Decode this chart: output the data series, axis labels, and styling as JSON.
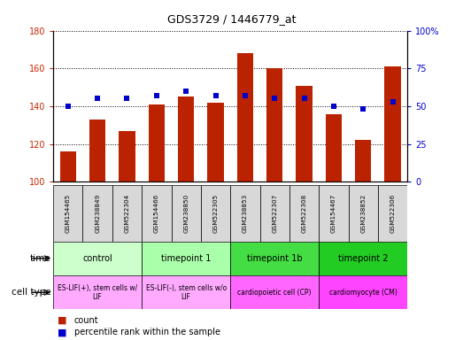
{
  "title": "GDS3729 / 1446779_at",
  "samples": [
    "GSM154465",
    "GSM238849",
    "GSM522304",
    "GSM154466",
    "GSM238850",
    "GSM522305",
    "GSM238853",
    "GSM522307",
    "GSM522308",
    "GSM154467",
    "GSM238852",
    "GSM522306"
  ],
  "counts": [
    116,
    133,
    127,
    141,
    145,
    142,
    168,
    160,
    151,
    136,
    122,
    161
  ],
  "percentile_ranks": [
    50,
    55,
    55,
    57,
    60,
    57,
    57,
    55,
    55,
    50,
    48,
    53
  ],
  "ylim_left": [
    100,
    180
  ],
  "ylim_right": [
    0,
    100
  ],
  "yticks_left": [
    100,
    120,
    140,
    160,
    180
  ],
  "yticks_right": [
    0,
    25,
    50,
    75,
    100
  ],
  "ytick_labels_right": [
    "0",
    "25",
    "50",
    "75",
    "100%"
  ],
  "bar_color": "#bb2200",
  "marker_color": "#0000cc",
  "sample_box_color": "#d8d8d8",
  "tick_label_color_left": "#cc2200",
  "tick_label_color_right": "#0000cc",
  "groups": [
    {
      "label": "control",
      "start": 0,
      "end": 3,
      "time_color": "#ccffcc",
      "cell_color": "#ffaaff",
      "cell_text": "ES-LIF(+), stem cells w/\nLIF"
    },
    {
      "label": "timepoint 1",
      "start": 3,
      "end": 6,
      "time_color": "#aaffaa",
      "cell_color": "#ffaaff",
      "cell_text": "ES-LIF(-), stem cells w/o\nLIF"
    },
    {
      "label": "timepoint 1b",
      "start": 6,
      "end": 9,
      "time_color": "#44dd44",
      "cell_color": "#ff66ff",
      "cell_text": "cardiopoietic cell (CP)"
    },
    {
      "label": "timepoint 2",
      "start": 9,
      "end": 12,
      "time_color": "#22cc22",
      "cell_color": "#ff44ff",
      "cell_text": "cardiomyocyte (CM)"
    }
  ],
  "legend_count_label": "count",
  "legend_percentile_label": "percentile rank within the sample",
  "time_row_label": "time",
  "cell_type_row_label": "cell type"
}
